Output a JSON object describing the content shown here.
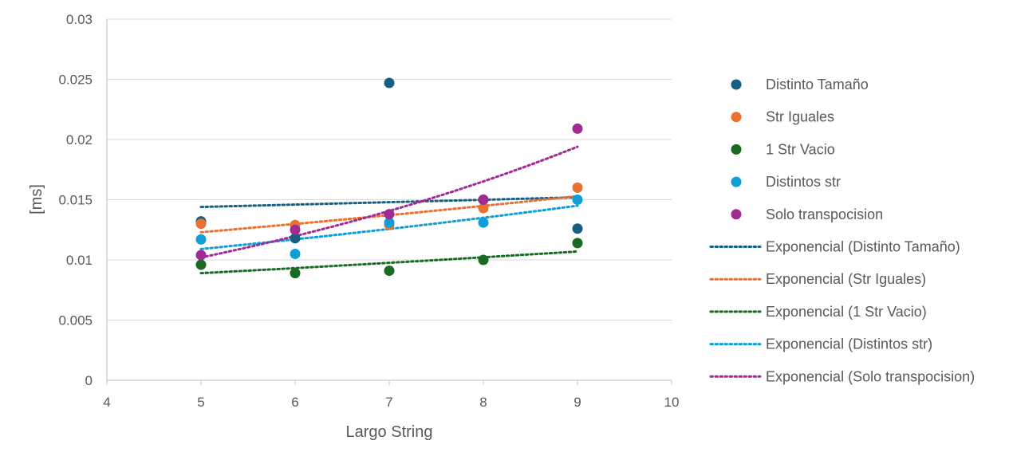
{
  "chart_data": {
    "type": "scatter",
    "title": "",
    "xlabel": "Largo String",
    "ylabel": "[ms]",
    "xlim": [
      4,
      10
    ],
    "ylim": [
      0,
      0.03
    ],
    "x_ticks": [
      "4",
      "5",
      "6",
      "7",
      "8",
      "9",
      "10"
    ],
    "y_ticks": [
      "0",
      "0.005",
      "0.01",
      "0.015",
      "0.02",
      "0.025",
      "0.03"
    ],
    "grid": "horizontal",
    "legend_position": "right",
    "series": [
      {
        "name": "Distinto Tamaño",
        "color": "#156082",
        "x": [
          5,
          6,
          7,
          8,
          9
        ],
        "y": [
          0.0132,
          0.0118,
          0.0247,
          0.015,
          0.0126
        ]
      },
      {
        "name": "Str Iguales",
        "color": "#E97132",
        "x": [
          5,
          6,
          7,
          8,
          9
        ],
        "y": [
          0.013,
          0.0129,
          0.0129,
          0.0143,
          0.016
        ]
      },
      {
        "name": "1 Str Vacio",
        "color": "#196B24",
        "x": [
          5,
          6,
          7,
          8,
          9
        ],
        "y": [
          0.0096,
          0.0089,
          0.0091,
          0.01,
          0.0114
        ]
      },
      {
        "name": "Distintos str",
        "color": "#0F9ED5",
        "x": [
          5,
          6,
          7,
          8,
          9
        ],
        "y": [
          0.0117,
          0.0105,
          0.0131,
          0.0131,
          0.015
        ]
      },
      {
        "name": "Solo transpocision",
        "color": "#A02B93",
        "x": [
          5,
          6,
          7,
          8,
          9
        ],
        "y": [
          0.0104,
          0.0125,
          0.0138,
          0.015,
          0.0209
        ]
      }
    ],
    "trendlines": [
      {
        "name": "Exponencial (Distinto Tamaño)",
        "color": "#156082",
        "x": [
          5,
          9
        ],
        "y": [
          0.0144,
          0.0152
        ]
      },
      {
        "name": "Exponencial (Str Iguales)",
        "color": "#E97132",
        "x": [
          5,
          9
        ],
        "y": [
          0.0123,
          0.0153
        ]
      },
      {
        "name": "Exponencial (1 Str Vacio)",
        "color": "#196B24",
        "x": [
          5,
          9
        ],
        "y": [
          0.0089,
          0.0107
        ]
      },
      {
        "name": "Exponencial (Distintos str)",
        "color": "#0F9ED5",
        "x": [
          5,
          9
        ],
        "y": [
          0.0109,
          0.0145
        ]
      },
      {
        "name": "Exponencial (Solo transpocision)",
        "color": "#A02B93",
        "x": [
          5,
          9
        ],
        "y": [
          0.0102,
          0.0194
        ]
      }
    ]
  }
}
